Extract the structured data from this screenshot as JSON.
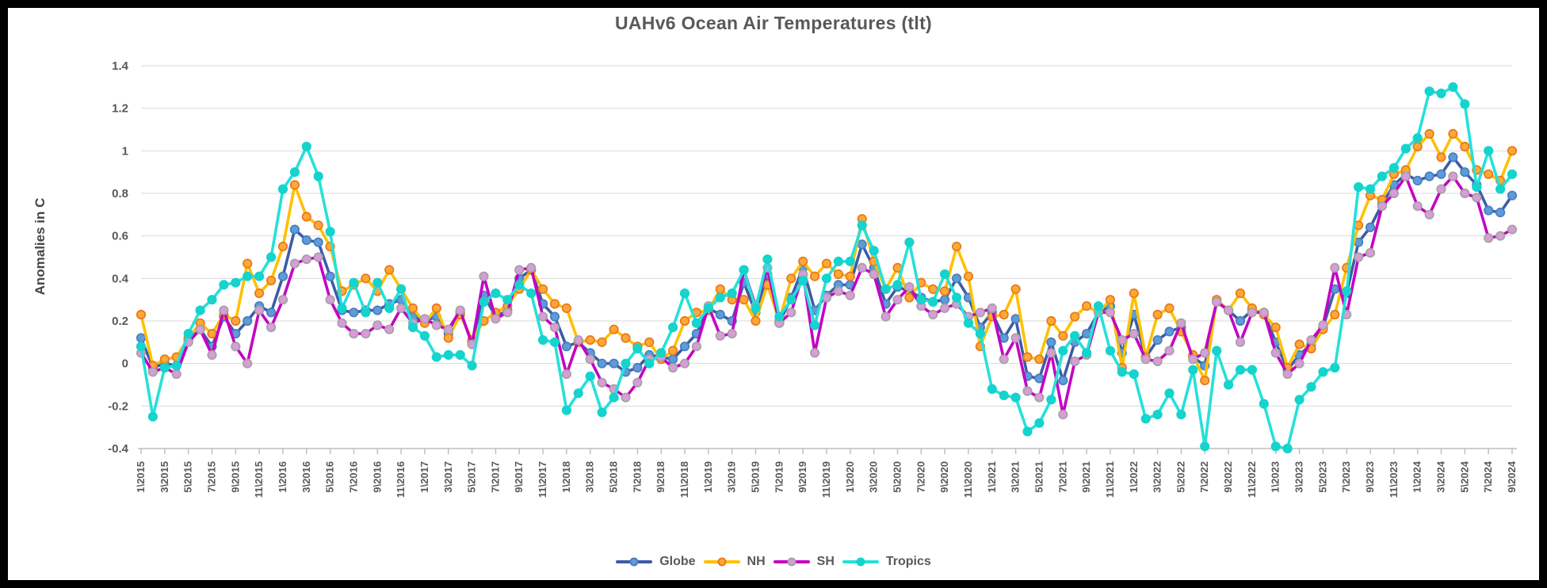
{
  "chart_data": {
    "type": "line",
    "title": "UAHv6 Ocean Air Temperatures (tlt)",
    "ylabel": "Anomalies in C",
    "xlabel": "",
    "ylim": [
      -0.4,
      1.4
    ],
    "grid": "horizontal",
    "legend_position": "bottom",
    "x_start": "1\\2015",
    "x_end": "9\\2024",
    "x_tick_every_n_months": 2,
    "y_ticks": [
      {
        "value": 1.4,
        "label": "1.4"
      },
      {
        "value": 1.2,
        "label": "1.2"
      },
      {
        "value": 1.0,
        "label": "1"
      },
      {
        "value": 0.8,
        "label": "0.8"
      },
      {
        "value": 0.6,
        "label": "0.6"
      },
      {
        "value": 0.4,
        "label": "0.4"
      },
      {
        "value": 0.2,
        "label": "0.2"
      },
      {
        "value": 0.0,
        "label": "0"
      },
      {
        "value": -0.2,
        "label": "-0.2"
      },
      {
        "value": -0.4,
        "label": "-0.4"
      }
    ],
    "x_tick_labels": [
      "1\\2015",
      "3\\2015",
      "5\\2015",
      "7\\2015",
      "9\\2015",
      "11\\2015",
      "1\\2016",
      "3\\2016",
      "5\\2016",
      "7\\2016",
      "9\\2016",
      "11\\2016",
      "1\\2017",
      "3\\2017",
      "5\\2017",
      "7\\2017",
      "9\\2017",
      "11\\2017",
      "1\\2018",
      "3\\2018",
      "5\\2018",
      "7\\2018",
      "9\\2018",
      "11\\2018",
      "1\\2019",
      "3\\2019",
      "5\\2019",
      "7\\2019",
      "9\\2019",
      "11\\2019",
      "1\\2020",
      "3\\2020",
      "5\\2020",
      "7\\2020",
      "9\\2020",
      "11\\2020",
      "1\\2021",
      "3\\2021",
      "5\\2021",
      "7\\2021",
      "9\\2021",
      "11\\2021",
      "1\\2022",
      "3\\2022",
      "5\\2022",
      "7\\2022",
      "9\\2022",
      "11\\2022",
      "1\\2023",
      "3\\2023",
      "5\\2023",
      "7\\2023",
      "9\\2023",
      "11\\2023",
      "1\\2024",
      "3\\2024",
      "5\\2024",
      "7\\2024",
      "9\\2024"
    ],
    "series": [
      {
        "name": "Globe",
        "line_color": "#3C5CA6",
        "marker_fill": "#5D9CD9",
        "marker_stroke": "#4A7FBE",
        "values": [
          0.12,
          -0.02,
          0.0,
          -0.01,
          0.11,
          0.16,
          0.08,
          0.22,
          0.14,
          0.2,
          0.27,
          0.24,
          0.41,
          0.63,
          0.58,
          0.57,
          0.41,
          0.25,
          0.24,
          0.25,
          0.25,
          0.28,
          0.3,
          0.22,
          0.2,
          0.22,
          0.14,
          0.24,
          0.1,
          0.32,
          0.22,
          0.25,
          0.4,
          0.44,
          0.28,
          0.22,
          0.08,
          0.1,
          0.05,
          0.0,
          0.0,
          -0.04,
          -0.02,
          0.04,
          0.03,
          0.02,
          0.08,
          0.14,
          0.26,
          0.23,
          0.2,
          0.38,
          0.24,
          0.42,
          0.19,
          0.31,
          0.45,
          0.25,
          0.32,
          0.37,
          0.37,
          0.56,
          0.45,
          0.28,
          0.36,
          0.34,
          0.31,
          0.29,
          0.3,
          0.4,
          0.31,
          0.17,
          0.24,
          0.12,
          0.21,
          -0.06,
          -0.07,
          0.1,
          -0.08,
          0.1,
          0.14,
          0.24,
          0.27,
          0.05,
          0.23,
          0.03,
          0.11,
          0.15,
          0.17,
          0.03,
          -0.01,
          0.29,
          0.25,
          0.2,
          0.25,
          0.24,
          0.1,
          -0.03,
          0.04,
          0.09,
          0.17,
          0.35,
          0.33,
          0.57,
          0.64,
          0.75,
          0.84,
          0.89,
          0.86,
          0.88,
          0.89,
          0.97,
          0.9,
          0.84,
          0.72,
          0.71,
          0.79
        ]
      },
      {
        "name": "NH",
        "line_color": "#FFC000",
        "marker_fill": "#FFA836",
        "marker_stroke": "#E87A1E",
        "values": [
          0.23,
          -0.01,
          0.02,
          0.03,
          0.12,
          0.19,
          0.14,
          0.23,
          0.2,
          0.47,
          0.33,
          0.39,
          0.55,
          0.84,
          0.69,
          0.65,
          0.55,
          0.34,
          0.37,
          0.4,
          0.34,
          0.44,
          0.35,
          0.26,
          0.19,
          0.26,
          0.12,
          0.23,
          0.11,
          0.2,
          0.24,
          0.27,
          0.35,
          0.44,
          0.35,
          0.28,
          0.26,
          0.1,
          0.11,
          0.1,
          0.16,
          0.12,
          0.08,
          0.1,
          0.02,
          0.06,
          0.2,
          0.24,
          0.25,
          0.35,
          0.3,
          0.3,
          0.2,
          0.37,
          0.2,
          0.4,
          0.48,
          0.41,
          0.47,
          0.42,
          0.41,
          0.68,
          0.48,
          0.35,
          0.45,
          0.31,
          0.38,
          0.35,
          0.34,
          0.55,
          0.41,
          0.08,
          0.22,
          0.23,
          0.35,
          0.03,
          0.02,
          0.2,
          0.13,
          0.22,
          0.27,
          0.24,
          0.3,
          -0.02,
          0.33,
          0.03,
          0.23,
          0.26,
          0.15,
          0.04,
          -0.08,
          0.3,
          0.25,
          0.33,
          0.26,
          0.23,
          0.17,
          -0.02,
          0.09,
          0.07,
          0.16,
          0.23,
          0.45,
          0.65,
          0.79,
          0.77,
          0.89,
          0.91,
          1.02,
          1.08,
          0.97,
          1.08,
          1.02,
          0.91,
          0.89,
          0.86,
          1.0
        ]
      },
      {
        "name": "SH",
        "line_color": "#C400C4",
        "marker_fill": "#D99CD9",
        "marker_stroke": "#A3A3A3",
        "values": [
          0.05,
          -0.04,
          -0.02,
          -0.05,
          0.1,
          0.16,
          0.04,
          0.25,
          0.08,
          0.0,
          0.25,
          0.17,
          0.3,
          0.47,
          0.49,
          0.5,
          0.3,
          0.19,
          0.14,
          0.14,
          0.18,
          0.16,
          0.26,
          0.19,
          0.21,
          0.18,
          0.16,
          0.25,
          0.09,
          0.41,
          0.21,
          0.24,
          0.44,
          0.45,
          0.22,
          0.17,
          -0.05,
          0.11,
          0.02,
          -0.09,
          -0.12,
          -0.16,
          -0.09,
          0.02,
          0.03,
          -0.02,
          0.0,
          0.08,
          0.27,
          0.13,
          0.14,
          0.44,
          0.27,
          0.45,
          0.19,
          0.24,
          0.42,
          0.05,
          0.31,
          0.34,
          0.32,
          0.45,
          0.42,
          0.22,
          0.3,
          0.36,
          0.27,
          0.23,
          0.26,
          0.28,
          0.22,
          0.24,
          0.26,
          0.02,
          0.12,
          -0.13,
          -0.16,
          0.05,
          -0.24,
          0.01,
          0.04,
          0.24,
          0.24,
          0.11,
          0.14,
          0.02,
          0.01,
          0.06,
          0.19,
          0.02,
          0.05,
          0.29,
          0.25,
          0.1,
          0.24,
          0.24,
          0.05,
          -0.05,
          0.0,
          0.11,
          0.18,
          0.45,
          0.23,
          0.5,
          0.52,
          0.74,
          0.8,
          0.88,
          0.74,
          0.7,
          0.82,
          0.88,
          0.8,
          0.78,
          0.59,
          0.6,
          0.63
        ]
      },
      {
        "name": "Tropics",
        "line_color": "#26E0DA",
        "marker_fill": "#15D3CD",
        "marker_stroke": "#15D3CD",
        "values": [
          0.08,
          -0.25,
          -0.02,
          -0.01,
          0.14,
          0.25,
          0.3,
          0.37,
          0.38,
          0.41,
          0.41,
          0.5,
          0.82,
          0.9,
          1.02,
          0.88,
          0.62,
          0.26,
          0.38,
          0.24,
          0.38,
          0.26,
          0.35,
          0.17,
          0.13,
          0.03,
          0.04,
          0.04,
          -0.01,
          0.29,
          0.33,
          0.3,
          0.37,
          0.33,
          0.11,
          0.1,
          -0.22,
          -0.14,
          -0.06,
          -0.23,
          -0.16,
          0.0,
          0.07,
          0.0,
          0.05,
          0.17,
          0.33,
          0.19,
          0.26,
          0.31,
          0.33,
          0.44,
          0.26,
          0.49,
          0.22,
          0.3,
          0.39,
          0.18,
          0.4,
          0.48,
          0.48,
          0.65,
          0.53,
          0.35,
          0.37,
          0.57,
          0.3,
          0.29,
          0.42,
          0.31,
          0.19,
          0.14,
          -0.12,
          -0.15,
          -0.16,
          -0.32,
          -0.28,
          -0.17,
          0.06,
          0.13,
          0.05,
          0.27,
          0.06,
          -0.04,
          -0.05,
          -0.26,
          -0.24,
          -0.14,
          -0.24,
          -0.03,
          -0.39,
          0.06,
          -0.1,
          -0.03,
          -0.03,
          -0.19,
          -0.39,
          -0.4,
          -0.17,
          -0.11,
          -0.04,
          -0.02,
          0.34,
          0.83,
          0.82,
          0.88,
          0.92,
          1.01,
          1.06,
          1.28,
          1.27,
          1.3,
          1.22,
          0.83,
          1.0,
          0.82,
          0.89
        ]
      }
    ],
    "style": {
      "background": "#FFFFFF",
      "frame_border": "#000000",
      "gridline_color": "#D9D9D9",
      "axis_color": "#BFBFBF",
      "text_color": "#595959"
    }
  }
}
